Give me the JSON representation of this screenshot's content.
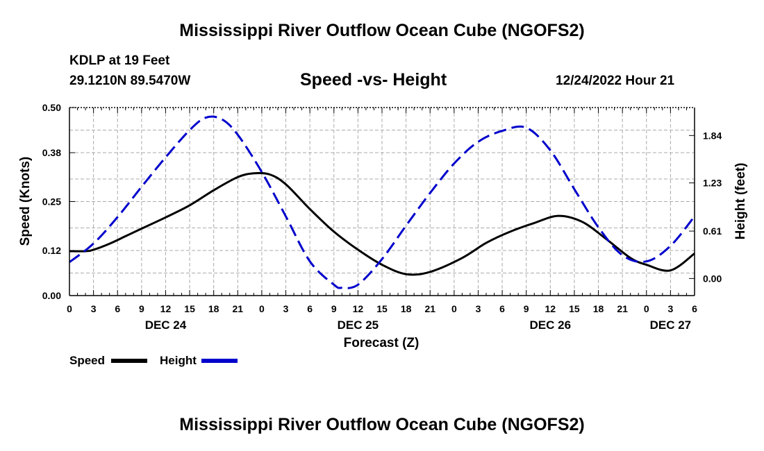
{
  "header": {
    "main_title": "Mississippi River Outflow Ocean Cube (NGOFS2)",
    "station": "KDLP at 19 Feet",
    "coords": "29.1210N  89.5470W",
    "subtitle": "Speed -vs- Height",
    "datetime": "12/24/2022 Hour 21"
  },
  "footer": {
    "title": "Mississippi River Outflow Ocean Cube (NGOFS2)"
  },
  "legend": {
    "speed_label": "Speed",
    "height_label": "Height"
  },
  "colors": {
    "speed": "#000000",
    "height": "#0000cc",
    "grid": "#aaaaaa"
  },
  "chart_data": {
    "type": "line",
    "title": "Speed -vs- Height",
    "xlabel": "Forecast (Z)",
    "ylabel": "Speed (Knots)",
    "y2label": "Height (feet)",
    "xlim": [
      0,
      78
    ],
    "ylim": [
      0,
      0.5
    ],
    "y2lim": [
      -0.22,
      2.2
    ],
    "yticks": [
      0.0,
      0.12,
      0.25,
      0.38,
      0.5
    ],
    "ytick_labels": [
      "0.00",
      "0.12",
      "0.25",
      "0.38",
      "0.50"
    ],
    "y2ticks": [
      0.0,
      0.61,
      1.23,
      1.84
    ],
    "y2tick_labels": [
      "0.00",
      "0.61",
      "1.23",
      "1.84"
    ],
    "xticks": [
      0,
      3,
      6,
      9,
      12,
      15,
      18,
      21,
      24,
      27,
      30,
      33,
      36,
      39,
      42,
      45,
      48,
      51,
      54,
      57,
      60,
      63,
      66,
      69,
      72,
      75,
      78
    ],
    "xtick_labels": [
      "0",
      "3",
      "6",
      "9",
      "12",
      "15",
      "18",
      "21",
      "0",
      "3",
      "6",
      "9",
      "12",
      "15",
      "18",
      "21",
      "0",
      "3",
      "6",
      "9",
      "12",
      "15",
      "18",
      "21",
      "0",
      "3",
      "6"
    ],
    "day_labels": [
      {
        "x": 12,
        "label": "DEC 24"
      },
      {
        "x": 36,
        "label": "DEC 25"
      },
      {
        "x": 60,
        "label": "DEC 26"
      },
      {
        "x": 75,
        "label": "DEC 27"
      }
    ],
    "grid": true,
    "legend_position": "bottom-left",
    "series": [
      {
        "name": "Speed",
        "axis": "left",
        "style": "solid",
        "x": [
          0,
          2,
          3,
          5,
          7,
          9,
          12,
          15,
          18,
          21,
          23,
          25,
          27,
          30,
          33,
          36,
          39,
          42,
          45,
          49,
          52,
          55,
          58,
          61,
          64,
          67,
          70,
          72,
          75,
          78
        ],
        "values": [
          0.118,
          0.118,
          0.122,
          0.138,
          0.158,
          0.178,
          0.208,
          0.24,
          0.28,
          0.315,
          0.325,
          0.322,
          0.296,
          0.23,
          0.17,
          0.122,
          0.082,
          0.057,
          0.063,
          0.1,
          0.14,
          0.17,
          0.193,
          0.212,
          0.196,
          0.15,
          0.1,
          0.082,
          0.067,
          0.112
        ]
      },
      {
        "name": "Height",
        "axis": "right",
        "style": "dashed",
        "x": [
          0,
          3,
          6,
          9,
          12,
          15,
          17,
          19,
          21,
          24,
          27,
          30,
          33,
          34,
          36,
          39,
          42,
          45,
          48,
          51,
          54,
          57,
          60,
          63,
          66,
          69,
          72,
          75,
          78
        ],
        "values": [
          0.21,
          0.45,
          0.79,
          1.18,
          1.56,
          1.91,
          2.07,
          2.05,
          1.85,
          1.37,
          0.8,
          0.22,
          -0.08,
          -0.12,
          -0.08,
          0.25,
          0.68,
          1.1,
          1.48,
          1.76,
          1.9,
          1.94,
          1.65,
          1.15,
          0.66,
          0.3,
          0.22,
          0.42,
          0.8
        ]
      }
    ]
  }
}
